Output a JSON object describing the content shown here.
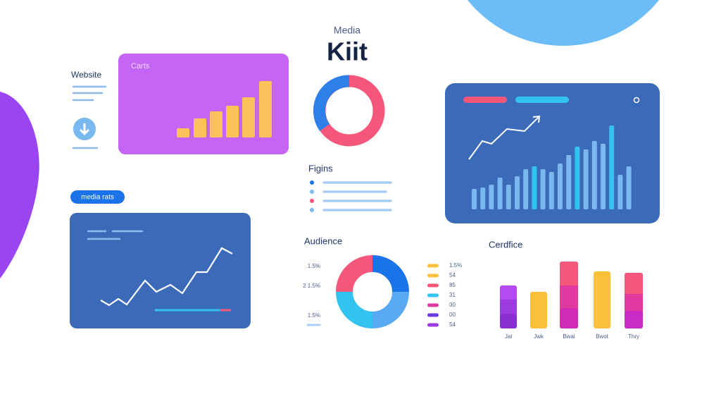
{
  "header": {
    "subtitle": "Media",
    "title": "Kiit"
  },
  "website": {
    "title": "Website"
  },
  "charts_card": {
    "title": "Carts"
  },
  "media_badge": {
    "label": "media rats"
  },
  "figins": {
    "title": "Figins"
  },
  "audience": {
    "title": "Audience",
    "left_labels": [
      "1.5%",
      "2 1.5%",
      "1.5%"
    ],
    "right_labels": [
      "1.5%",
      "54",
      "85",
      "31",
      "00",
      "00",
      "54"
    ]
  },
  "cerdfice": {
    "title": "Cerdfice",
    "labels": [
      "Jal",
      "Jwk",
      "Bwal",
      "Bwot",
      "Thry"
    ]
  }
}
